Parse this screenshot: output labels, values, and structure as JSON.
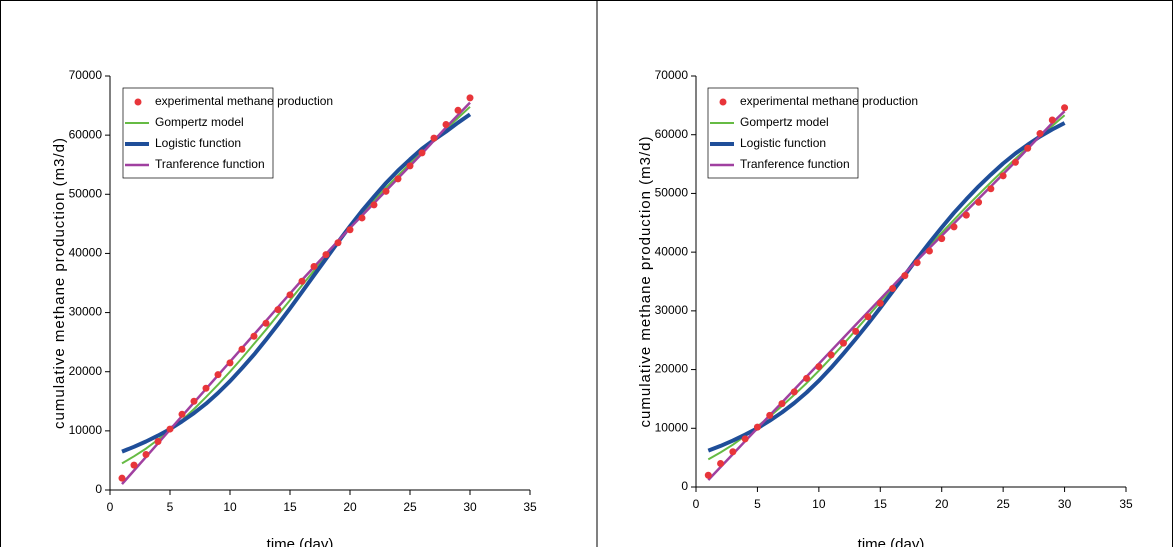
{
  "chart_data": [
    {
      "type": "line",
      "xlabel": "time (day)",
      "ylabel": "cumulative methane production (m3/d)",
      "x": [
        1,
        2,
        3,
        4,
        5,
        6,
        7,
        8,
        9,
        10,
        11,
        12,
        13,
        14,
        15,
        16,
        17,
        18,
        19,
        20,
        21,
        22,
        23,
        24,
        25,
        26,
        27,
        28,
        29,
        30
      ],
      "xlim": [
        0,
        35
      ],
      "xticks": [
        0,
        5,
        10,
        15,
        20,
        25,
        30,
        35
      ],
      "ylim": [
        0,
        70000
      ],
      "yticks": [
        0,
        10000,
        20000,
        30000,
        40000,
        50000,
        60000,
        70000
      ],
      "legend": "upper left",
      "series": [
        {
          "name": "experimental methane production",
          "color": "#e8353a",
          "style": "marker",
          "values": [
            2000,
            4200,
            6000,
            8200,
            10300,
            12800,
            15000,
            17200,
            19500,
            21500,
            23800,
            26000,
            28200,
            30500,
            33000,
            35300,
            37800,
            39800,
            41800,
            44000,
            46000,
            48200,
            50500,
            52600,
            54800,
            57000,
            59500,
            61800,
            64200,
            66300
          ]
        },
        {
          "name": "Gompertz model",
          "color": "#66bb44",
          "style": "line",
          "width": 2,
          "values": [
            4500,
            5700,
            7000,
            8500,
            10100,
            11800,
            13700,
            15700,
            17800,
            20000,
            22300,
            24700,
            27100,
            29600,
            32100,
            34600,
            37100,
            39600,
            42000,
            44400,
            46700,
            48900,
            51100,
            53200,
            55200,
            57200,
            59100,
            61000,
            62900,
            64800
          ]
        },
        {
          "name": "Logistic function",
          "color": "#1f4e99",
          "style": "line",
          "width": 4,
          "values": [
            6500,
            7300,
            8200,
            9200,
            10300,
            11600,
            13000,
            14600,
            16400,
            18400,
            20600,
            22900,
            25400,
            28000,
            30700,
            33500,
            36300,
            39100,
            41900,
            44600,
            47200,
            49600,
            51900,
            54000,
            55900,
            57700,
            59200,
            60600,
            62100,
            63500
          ]
        },
        {
          "name": "Tranference function",
          "color": "#a040a0",
          "style": "line",
          "width": 2.5,
          "values": [
            1000,
            3300,
            5600,
            7900,
            10200,
            12500,
            14800,
            17100,
            19400,
            21700,
            24000,
            26300,
            28600,
            30900,
            33200,
            35500,
            37700,
            39900,
            42100,
            44300,
            46400,
            48500,
            50600,
            52700,
            54800,
            56900,
            59100,
            61300,
            63400,
            65500
          ]
        }
      ]
    },
    {
      "type": "line",
      "xlabel": "time (day)",
      "ylabel": "cumulative methane production (m3/d)",
      "x": [
        1,
        2,
        3,
        4,
        5,
        6,
        7,
        8,
        9,
        10,
        11,
        12,
        13,
        14,
        15,
        16,
        17,
        18,
        19,
        20,
        21,
        22,
        23,
        24,
        25,
        26,
        27,
        28,
        29,
        30
      ],
      "xlim": [
        0,
        35
      ],
      "xticks": [
        0,
        5,
        10,
        15,
        20,
        25,
        30,
        35
      ],
      "ylim": [
        0,
        70000
      ],
      "yticks": [
        0,
        10000,
        20000,
        30000,
        40000,
        50000,
        60000,
        70000
      ],
      "legend": "upper left",
      "series": [
        {
          "name": "experimental methane production",
          "color": "#e8353a",
          "style": "marker",
          "values": [
            2000,
            4000,
            6000,
            8200,
            10200,
            12200,
            14200,
            16200,
            18500,
            20500,
            22500,
            24500,
            26500,
            29000,
            31300,
            33800,
            36000,
            38200,
            40200,
            42300,
            44300,
            46300,
            48500,
            50800,
            53000,
            55300,
            57700,
            60200,
            62500,
            64600
          ]
        },
        {
          "name": "Gompertz model",
          "color": "#66bb44",
          "style": "line",
          "width": 2,
          "values": [
            4700,
            5900,
            7200,
            8700,
            10300,
            12000,
            13800,
            15700,
            17700,
            19800,
            22000,
            24300,
            26700,
            29100,
            31500,
            33900,
            36300,
            38700,
            41000,
            43300,
            45500,
            47700,
            49800,
            51900,
            53900,
            55900,
            57800,
            59700,
            61500,
            63300
          ]
        },
        {
          "name": "Logistic function",
          "color": "#1f4e99",
          "style": "line",
          "width": 4,
          "values": [
            6200,
            7000,
            7900,
            8900,
            10000,
            11300,
            12700,
            14300,
            16100,
            18100,
            20300,
            22700,
            25200,
            27800,
            30500,
            33300,
            36100,
            38900,
            41600,
            44200,
            46700,
            49000,
            51200,
            53200,
            55100,
            56800,
            58300,
            59700,
            60900,
            62000
          ]
        },
        {
          "name": "Tranference function",
          "color": "#a040a0",
          "style": "line",
          "width": 2.5,
          "values": [
            1200,
            3400,
            5600,
            7800,
            10000,
            12200,
            14400,
            16600,
            18800,
            21000,
            23200,
            25400,
            27600,
            29800,
            32000,
            34200,
            36400,
            38600,
            40700,
            42800,
            44900,
            47000,
            49100,
            51200,
            53300,
            55400,
            57600,
            59800,
            62000,
            64000
          ]
        }
      ]
    }
  ]
}
